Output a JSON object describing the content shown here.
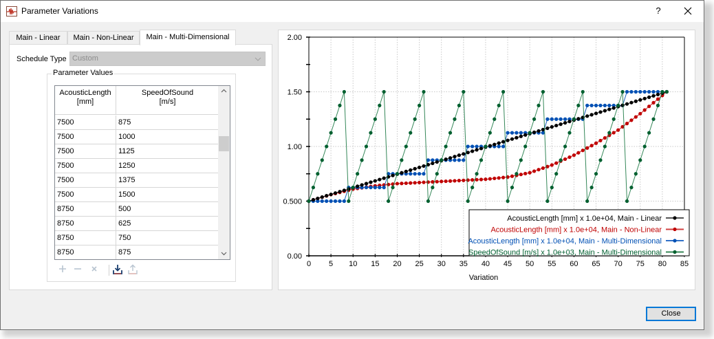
{
  "window": {
    "title": "Parameter Variations",
    "help_label": "?",
    "close_glyph": "✕",
    "icon": "waveform-icon"
  },
  "tabs": [
    {
      "label": "Main - Linear",
      "active": false
    },
    {
      "label": "Main - Non-Linear",
      "active": false
    },
    {
      "label": "Main - Multi-Dimensional",
      "active": true
    }
  ],
  "schedule": {
    "label": "Schedule Type",
    "value": "Custom",
    "disabled": true
  },
  "parameter_values": {
    "group_title": "Parameter Values",
    "columns": [
      {
        "line1": "AcousticLength",
        "line2": "[mm]"
      },
      {
        "line1": "SpeedOfSound",
        "line2": "[m/s]"
      }
    ],
    "rows": [
      [
        "7500",
        "875"
      ],
      [
        "7500",
        "1000"
      ],
      [
        "7500",
        "1125"
      ],
      [
        "7500",
        "1250"
      ],
      [
        "7500",
        "1375"
      ],
      [
        "7500",
        "1500"
      ],
      [
        "8750",
        "500"
      ],
      [
        "8750",
        "625"
      ],
      [
        "8750",
        "750"
      ],
      [
        "8750",
        "875"
      ]
    ],
    "scroll_up": "⌃",
    "scroll_down": "⌄",
    "toolbar": {
      "add": "+",
      "remove": "−",
      "clear": "×",
      "import": "import-icon",
      "export": "export-icon"
    }
  },
  "footer": {
    "close_label": "Close"
  },
  "chart_data": {
    "type": "line",
    "title": "",
    "xlabel": "Variation",
    "ylabel": "",
    "xlim": [
      0,
      85
    ],
    "ylim": [
      0,
      2
    ],
    "x_ticks": [
      "0",
      "5",
      "10",
      "15",
      "20",
      "25",
      "30",
      "35",
      "40",
      "45",
      "50",
      "55",
      "60",
      "65",
      "70",
      "75",
      "80",
      "85"
    ],
    "y_ticks": [
      "0.00",
      "0.500",
      "1.00",
      "1.50",
      "2.00"
    ],
    "grid": true,
    "legend_position": "lower right",
    "series": [
      {
        "name": "AcousticLength [mm] x 1.0e+04, Main - Linear",
        "color": "#000000",
        "description": "linear from 0.5 at x=0 to 1.5 at x=81, 82 points"
      },
      {
        "name": "AcousticLength [mm] x 1.0e+04, Main - Non-Linear",
        "color": "#c00000",
        "description": "rises 0.5→~0.64 by x≈12, slow to ~0.72 at x≈45, then steep to 1.5 at x=81",
        "samples": [
          [
            0,
            0.5
          ],
          [
            5,
            0.56
          ],
          [
            10,
            0.61
          ],
          [
            15,
            0.64
          ],
          [
            20,
            0.66
          ],
          [
            30,
            0.68
          ],
          [
            40,
            0.7
          ],
          [
            45,
            0.72
          ],
          [
            50,
            0.76
          ],
          [
            55,
            0.83
          ],
          [
            60,
            0.92
          ],
          [
            65,
            1.03
          ],
          [
            70,
            1.15
          ],
          [
            75,
            1.3
          ],
          [
            81,
            1.5
          ]
        ]
      },
      {
        "name": "AcousticLength [mm] x 1.0e+04, Main - Multi-Dimensional",
        "color": "#0050b4",
        "description": "step function: levels 0.5,0.625,0.75,0.875,1.0,1.125,1.25,1.375,1.5 each held 9 variations"
      },
      {
        "name": "SpeedOfSound [m/s] x 1.0e+03, Main - Multi-Dimensional",
        "color": "#006030",
        "description": "sawtooth: 0.5→1.5 in steps of 0.125 over 9 variations, repeated 9 times"
      }
    ]
  }
}
